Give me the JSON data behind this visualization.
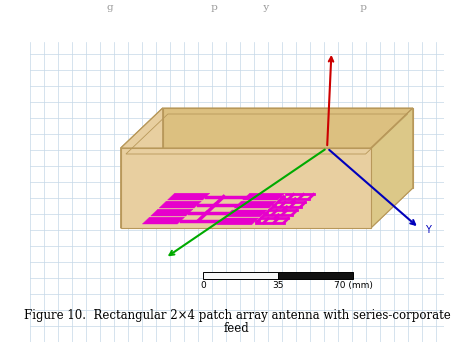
{
  "caption_line1": "Figure 10.  Rectangular 2×4 patch array antenna with series-corporate",
  "caption_line2": "feed",
  "top_text": "g                              p              y                            p",
  "bg_color": "#ffffff",
  "grid_color": "#c5d8e8",
  "box_wall_color": "#e8cfa0",
  "box_wall_dark": "#d4b87a",
  "box_floor_color": "#f0ddb0",
  "box_edge_color": "#b8985a",
  "patch_color": "#e600cc",
  "scalebar_white": "#f0f0f0",
  "scalebar_black": "#111111",
  "scalebar_label_0": "0",
  "scalebar_label_35": "35",
  "scalebar_label_70": "70 (mm)",
  "arrow_red": "#cc0000",
  "arrow_green": "#00aa00",
  "arrow_blue": "#0000bb",
  "label_y": "Y"
}
